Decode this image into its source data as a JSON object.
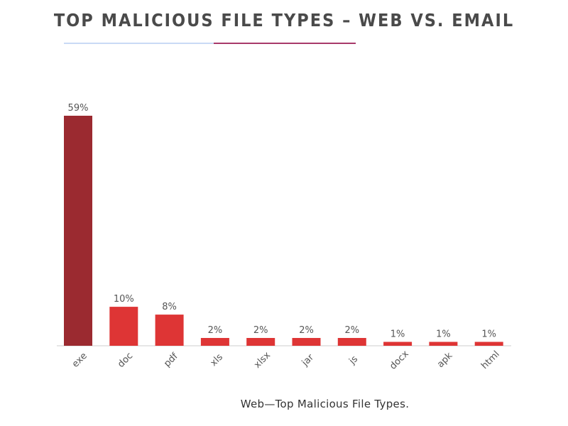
{
  "header": {
    "title": "TOP MALICIOUS FILE TYPES – WEB VS. EMAIL"
  },
  "colors": {
    "title_text": "#4a4a4a",
    "divider_left": "#c9daf5",
    "divider_right": "#a8396a",
    "bar_highlight": "#9b2a30",
    "bar_default": "#de3535",
    "axis_line": "#cccccc",
    "label_text": "#555555"
  },
  "chart_data": {
    "type": "bar",
    "categories": [
      "exe",
      "doc",
      "pdf",
      "xls",
      "xlsx",
      "jar",
      "js",
      "docx",
      "apk",
      "html"
    ],
    "values": [
      59,
      10,
      8,
      2,
      2,
      2,
      2,
      1,
      1,
      1
    ],
    "value_labels": [
      "59%",
      "10%",
      "8%",
      "2%",
      "2%",
      "2%",
      "2%",
      "1%",
      "1%",
      "1%"
    ],
    "unit": "%",
    "highlight_index": 0,
    "grid": false,
    "legend": "none",
    "ylim": [
      0,
      59
    ]
  },
  "caption": "Web—Top Malicious File Types."
}
